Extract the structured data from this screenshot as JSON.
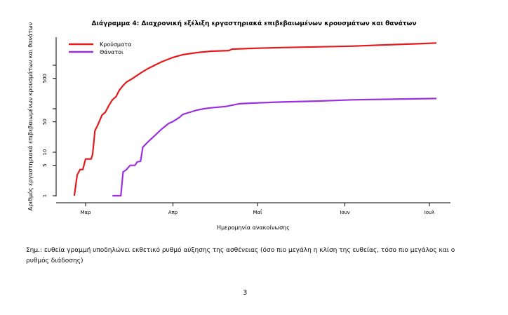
{
  "chart_data": {
    "type": "line",
    "title": "Διάγραμμα 4: Διαχρονική εξέλιξη εργαστηριακά επιβεβαιωμένων κρουσμάτων και θανάτων",
    "xlabel": "Ημερομηνία ανακοίνωσης",
    "ylabel": "Αριθμός εργαστηριακά επιβεβαιωμένων κρουσμάτων και θανάτων",
    "yscale": "log",
    "ylim": [
      1,
      4000
    ],
    "x_units": "days since 1 March",
    "xlim": [
      -6,
      124
    ],
    "xticks": [
      {
        "day": 0,
        "label": "Μαρ"
      },
      {
        "day": 31,
        "label": "Απρ"
      },
      {
        "day": 61,
        "label": "Μαΐ"
      },
      {
        "day": 92,
        "label": "Ιουν"
      },
      {
        "day": 122,
        "label": "Ιουλ"
      }
    ],
    "yticks": [
      {
        "value": 1,
        "label": "1"
      },
      {
        "value": 5,
        "label": "5"
      },
      {
        "value": 10,
        "label": "10"
      },
      {
        "value": 50,
        "label": "50"
      },
      {
        "value": 100,
        "label": ""
      },
      {
        "value": 500,
        "label": "500"
      },
      {
        "value": 1000,
        "label": ""
      }
    ],
    "legend_position": "top-left",
    "series": [
      {
        "name": "Κρούσματα",
        "color": "#e41a1c",
        "points": [
          [
            -4,
            1
          ],
          [
            -3,
            3
          ],
          [
            -2,
            4
          ],
          [
            -1,
            4
          ],
          [
            0,
            7
          ],
          [
            2,
            7
          ],
          [
            2.5,
            9
          ],
          [
            3.3,
            31
          ],
          [
            4.5,
            45
          ],
          [
            5.8,
            71
          ],
          [
            7,
            83
          ],
          [
            8.3,
            120
          ],
          [
            9.5,
            160
          ],
          [
            10.8,
            190
          ],
          [
            12,
            270
          ],
          [
            13.3,
            340
          ],
          [
            14.5,
            410
          ],
          [
            15.8,
            460
          ],
          [
            17,
            515
          ],
          [
            19.5,
            660
          ],
          [
            22,
            830
          ],
          [
            24.5,
            1000
          ],
          [
            27,
            1200
          ],
          [
            30.8,
            1500
          ],
          [
            34.5,
            1750
          ],
          [
            39.5,
            1950
          ],
          [
            44.5,
            2100
          ],
          [
            50.8,
            2170
          ],
          [
            52,
            2350
          ],
          [
            59.5,
            2450
          ],
          [
            69.5,
            2550
          ],
          [
            82,
            2650
          ],
          [
            94.5,
            2750
          ],
          [
            107,
            2950
          ],
          [
            119.5,
            3150
          ],
          [
            124.5,
            3250
          ]
        ]
      },
      {
        "name": "Θάνατοι",
        "color": "#9b30e0",
        "points": [
          [
            9.5,
            1
          ],
          [
            12.5,
            1
          ],
          [
            13.3,
            3.5
          ],
          [
            14.5,
            4
          ],
          [
            15.8,
            5
          ],
          [
            17.5,
            5
          ],
          [
            18.3,
            6
          ],
          [
            19.5,
            6.2
          ],
          [
            20.3,
            13
          ],
          [
            22,
            17
          ],
          [
            24.5,
            24
          ],
          [
            27,
            34
          ],
          [
            29.5,
            46
          ],
          [
            30.8,
            50
          ],
          [
            33.3,
            63
          ],
          [
            34.5,
            74
          ],
          [
            37,
            83
          ],
          [
            39.5,
            93
          ],
          [
            42,
            100
          ],
          [
            44.5,
            105
          ],
          [
            49.5,
            112
          ],
          [
            54.5,
            130
          ],
          [
            59.5,
            135
          ],
          [
            69.5,
            143
          ],
          [
            82,
            150
          ],
          [
            94.5,
            160
          ],
          [
            107,
            165
          ],
          [
            124.5,
            172
          ]
        ]
      }
    ]
  },
  "note": "Σημ.: ευθεία γραμμή υποδηλώνει εκθετικό ρυθμό αύξησης της ασθένειας (όσο πιο μεγάλη η κλίση της ευθείας, τόσο πιο μεγάλος και ο ρυθμός διάδοσης)",
  "page_number": "3"
}
